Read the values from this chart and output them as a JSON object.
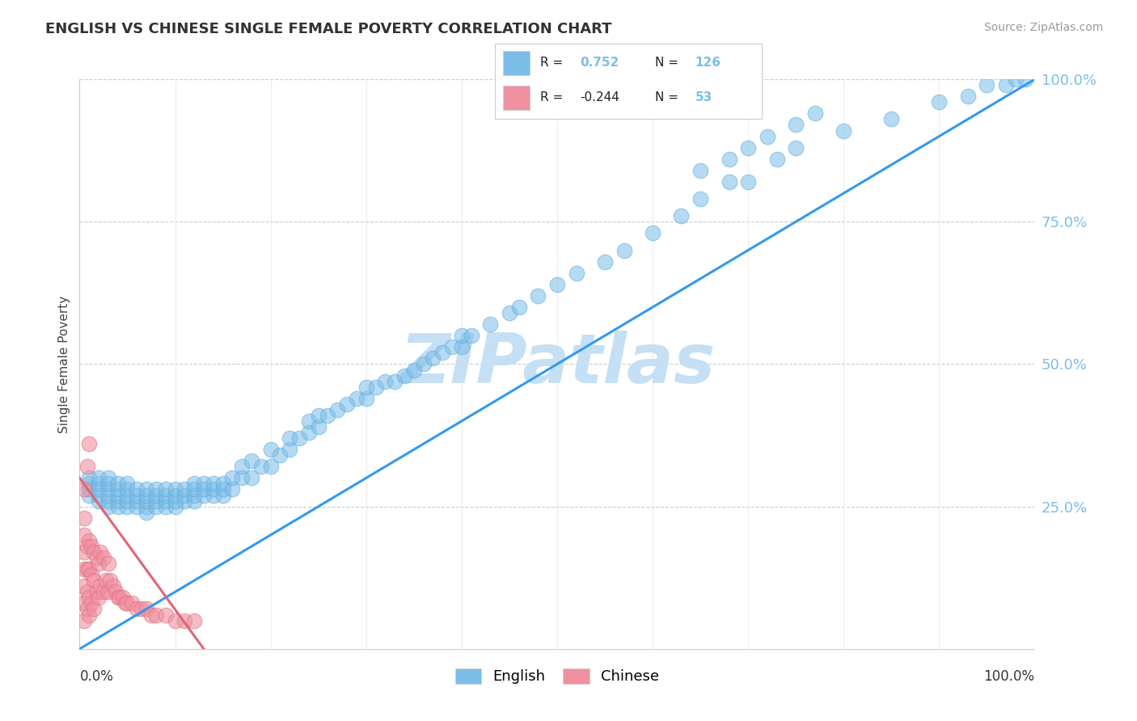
{
  "title": "ENGLISH VS CHINESE SINGLE FEMALE POVERTY CORRELATION CHART",
  "source": "Source: ZipAtlas.com",
  "ylabel": "Single Female Poverty",
  "xlim": [
    0,
    1
  ],
  "ylim": [
    0,
    1
  ],
  "english_R": 0.752,
  "english_N": 126,
  "chinese_R": -0.244,
  "chinese_N": 53,
  "english_color": "#7bbde8",
  "english_edge": "#5aaade",
  "chinese_color": "#f090a0",
  "chinese_edge": "#e07080",
  "line_english_color": "#3399ee",
  "line_chinese_color": "#dd6677",
  "watermark_color": "#c5dff5",
  "bg_color": "#ffffff",
  "english_scatter_x": [
    0.01,
    0.01,
    0.01,
    0.01,
    0.02,
    0.02,
    0.02,
    0.02,
    0.02,
    0.03,
    0.03,
    0.03,
    0.03,
    0.03,
    0.03,
    0.04,
    0.04,
    0.04,
    0.04,
    0.04,
    0.05,
    0.05,
    0.05,
    0.05,
    0.05,
    0.06,
    0.06,
    0.06,
    0.06,
    0.07,
    0.07,
    0.07,
    0.07,
    0.07,
    0.08,
    0.08,
    0.08,
    0.08,
    0.09,
    0.09,
    0.09,
    0.09,
    0.1,
    0.1,
    0.1,
    0.1,
    0.11,
    0.11,
    0.11,
    0.12,
    0.12,
    0.12,
    0.12,
    0.13,
    0.13,
    0.13,
    0.14,
    0.14,
    0.14,
    0.15,
    0.15,
    0.15,
    0.16,
    0.16,
    0.17,
    0.17,
    0.18,
    0.18,
    0.19,
    0.2,
    0.2,
    0.21,
    0.22,
    0.22,
    0.23,
    0.24,
    0.24,
    0.25,
    0.25,
    0.26,
    0.27,
    0.28,
    0.29,
    0.3,
    0.3,
    0.31,
    0.32,
    0.33,
    0.34,
    0.35,
    0.36,
    0.37,
    0.38,
    0.39,
    0.4,
    0.4,
    0.41,
    0.43,
    0.45,
    0.46,
    0.48,
    0.5,
    0.52,
    0.55,
    0.57,
    0.6,
    0.63,
    0.65,
    0.68,
    0.7,
    0.73,
    0.75,
    0.8,
    0.85,
    0.9,
    0.93,
    0.95,
    0.97,
    0.98,
    0.99,
    0.65,
    0.68,
    0.7,
    0.72,
    0.75,
    0.77
  ],
  "english_scatter_y": [
    0.27,
    0.28,
    0.29,
    0.3,
    0.26,
    0.27,
    0.28,
    0.29,
    0.3,
    0.25,
    0.26,
    0.27,
    0.28,
    0.29,
    0.3,
    0.25,
    0.26,
    0.27,
    0.28,
    0.29,
    0.25,
    0.26,
    0.27,
    0.28,
    0.29,
    0.25,
    0.26,
    0.27,
    0.28,
    0.24,
    0.25,
    0.26,
    0.27,
    0.28,
    0.25,
    0.26,
    0.27,
    0.28,
    0.25,
    0.26,
    0.27,
    0.28,
    0.25,
    0.26,
    0.27,
    0.28,
    0.26,
    0.27,
    0.28,
    0.26,
    0.27,
    0.28,
    0.29,
    0.27,
    0.28,
    0.29,
    0.27,
    0.28,
    0.29,
    0.27,
    0.28,
    0.29,
    0.28,
    0.3,
    0.3,
    0.32,
    0.3,
    0.33,
    0.32,
    0.32,
    0.35,
    0.34,
    0.35,
    0.37,
    0.37,
    0.38,
    0.4,
    0.39,
    0.41,
    0.41,
    0.42,
    0.43,
    0.44,
    0.44,
    0.46,
    0.46,
    0.47,
    0.47,
    0.48,
    0.49,
    0.5,
    0.51,
    0.52,
    0.53,
    0.53,
    0.55,
    0.55,
    0.57,
    0.59,
    0.6,
    0.62,
    0.64,
    0.66,
    0.68,
    0.7,
    0.73,
    0.76,
    0.79,
    0.82,
    0.82,
    0.86,
    0.88,
    0.91,
    0.93,
    0.96,
    0.97,
    0.99,
    0.99,
    1.0,
    1.0,
    0.84,
    0.86,
    0.88,
    0.9,
    0.92,
    0.94
  ],
  "chinese_scatter_x": [
    0.005,
    0.005,
    0.005,
    0.005,
    0.005,
    0.005,
    0.005,
    0.008,
    0.008,
    0.008,
    0.008,
    0.01,
    0.01,
    0.01,
    0.01,
    0.012,
    0.012,
    0.012,
    0.015,
    0.015,
    0.015,
    0.018,
    0.018,
    0.02,
    0.02,
    0.022,
    0.022,
    0.025,
    0.025,
    0.028,
    0.03,
    0.03,
    0.032,
    0.035,
    0.038,
    0.04,
    0.042,
    0.045,
    0.048,
    0.05,
    0.055,
    0.06,
    0.065,
    0.07,
    0.075,
    0.08,
    0.09,
    0.1,
    0.11,
    0.12,
    0.005,
    0.008,
    0.01
  ],
  "chinese_scatter_y": [
    0.05,
    0.08,
    0.11,
    0.14,
    0.17,
    0.2,
    0.23,
    0.07,
    0.1,
    0.14,
    0.18,
    0.06,
    0.09,
    0.14,
    0.19,
    0.08,
    0.13,
    0.18,
    0.07,
    0.12,
    0.17,
    0.1,
    0.16,
    0.09,
    0.15,
    0.11,
    0.17,
    0.1,
    0.16,
    0.12,
    0.1,
    0.15,
    0.12,
    0.11,
    0.1,
    0.09,
    0.09,
    0.09,
    0.08,
    0.08,
    0.08,
    0.07,
    0.07,
    0.07,
    0.06,
    0.06,
    0.06,
    0.05,
    0.05,
    0.05,
    0.28,
    0.32,
    0.36
  ],
  "eng_line_x0": 0.0,
  "eng_line_y0": 0.0,
  "eng_line_x1": 1.0,
  "eng_line_y1": 1.0,
  "chn_line_x0": 0.0,
  "chn_line_y0": 0.3,
  "chn_line_x1": 0.13,
  "chn_line_y1": 0.0
}
